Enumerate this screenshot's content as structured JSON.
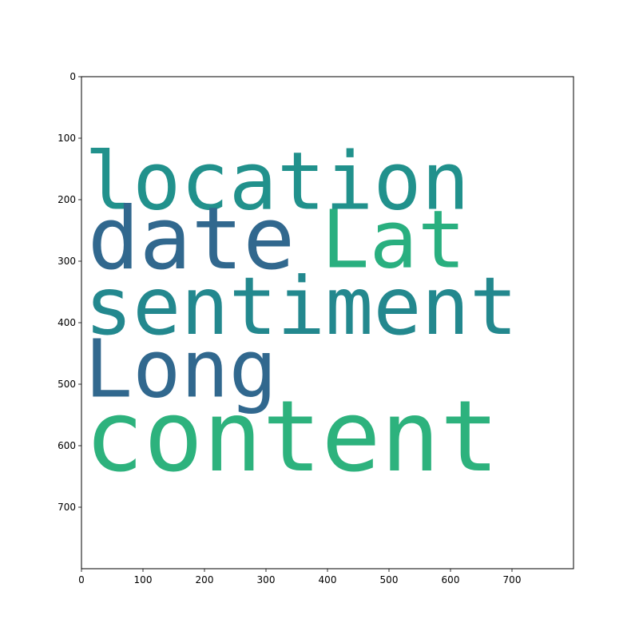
{
  "chart_data": {
    "type": "wordcloud",
    "title": "",
    "xlabel": "",
    "ylabel": "",
    "xlim": [
      0,
      800
    ],
    "ylim": [
      800,
      0
    ],
    "x_ticks": [
      0,
      100,
      200,
      300,
      400,
      500,
      600,
      700
    ],
    "y_ticks": [
      0,
      100,
      200,
      300,
      400,
      500,
      600,
      700
    ],
    "y_axis_inverted": true,
    "grid": false,
    "words": [
      {
        "text": "location",
        "x": 5,
        "y": 215,
        "size": 130,
        "color": "#21918c"
      },
      {
        "text": "date",
        "x": 10,
        "y": 312,
        "size": 140,
        "color": "#31688e"
      },
      {
        "text": "Lat",
        "x": 390,
        "y": 310,
        "size": 130,
        "color": "#29af7f"
      },
      {
        "text": "sentiment",
        "x": 5,
        "y": 418,
        "size": 130,
        "color": "#23888e"
      },
      {
        "text": "Long",
        "x": 5,
        "y": 520,
        "size": 130,
        "color": "#31688e"
      },
      {
        "text": "content",
        "x": 5,
        "y": 640,
        "size": 160,
        "color": "#2db27d"
      }
    ]
  }
}
